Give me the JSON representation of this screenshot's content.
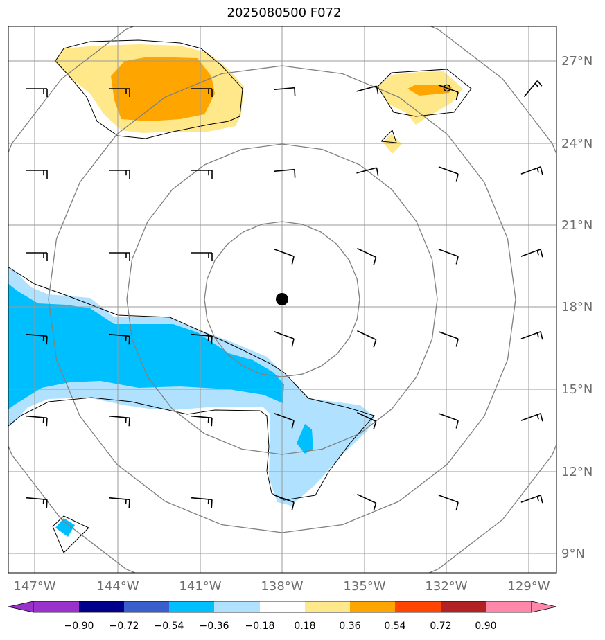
{
  "title": "2025080500 F072",
  "map": {
    "lon_labels": [
      "147°W",
      "144°W",
      "141°W",
      "138°W",
      "135°W",
      "132°W",
      "129°W"
    ],
    "lat_labels": [
      "27°N",
      "24°N",
      "21°N",
      "18°N",
      "15°N",
      "12°N",
      "9°N"
    ],
    "storm_center": {
      "lon": -138,
      "lat": 18.3
    }
  },
  "colorbar": {
    "tick_labels": [
      "−0.90",
      "−0.72",
      "−0.54",
      "−0.36",
      "−0.18",
      "0.18",
      "0.36",
      "0.54",
      "0.72",
      "0.90"
    ],
    "colors": [
      "#9932cc",
      "#00008b",
      "#3a5fcd",
      "#00bfff",
      "#b0e2ff",
      "#ffffff",
      "#ffe88a",
      "#ffa500",
      "#ff4500",
      "#b22222",
      "#ff88aa"
    ]
  },
  "colors": {
    "grid": "#9a9a9a",
    "range_ring": "#808080",
    "contour": "#000000"
  }
}
